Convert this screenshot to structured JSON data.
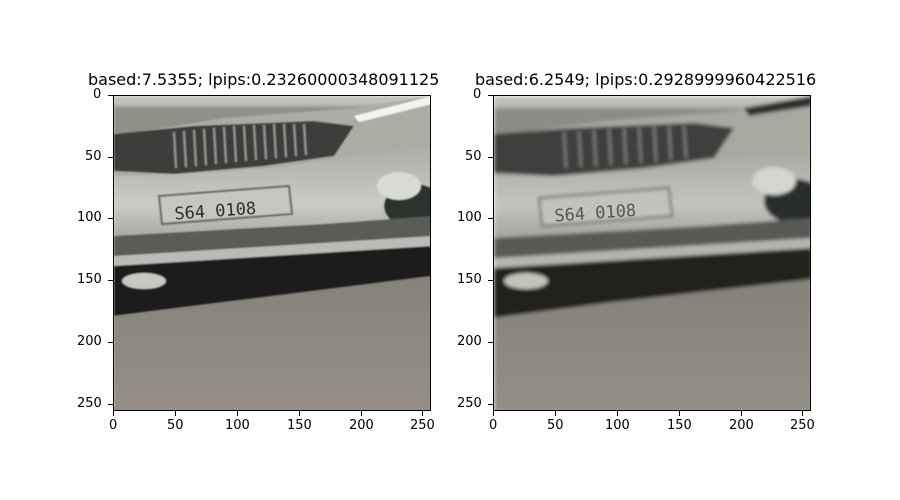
{
  "panels": [
    {
      "title": "based:7.5355; lpips:0.23260000348091125",
      "image": "car-front-bumper-license-plate",
      "plate_text": "S64 0108",
      "y_ticks": [
        "0",
        "50",
        "100",
        "150",
        "200",
        "250"
      ],
      "x_ticks": [
        "0",
        "50",
        "100",
        "150",
        "200",
        "250"
      ]
    },
    {
      "title": "based:6.2549; lpips:0.2928999960422516",
      "image": "car-front-bumper-license-plate-blurry",
      "plate_text": "S64 0108",
      "y_ticks": [
        "0",
        "50",
        "100",
        "150",
        "200",
        "250"
      ],
      "x_ticks": [
        "0",
        "50",
        "100",
        "150",
        "200",
        "250"
      ]
    }
  ]
}
